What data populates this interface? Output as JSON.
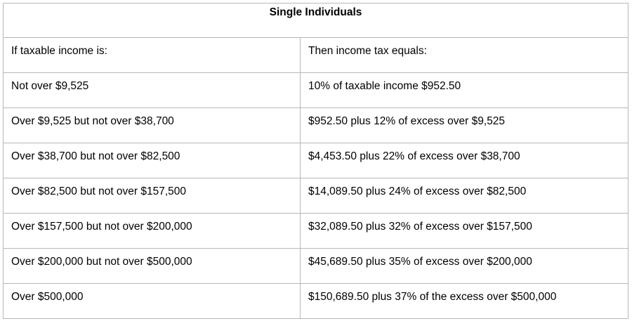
{
  "table": {
    "title": "Single Individuals",
    "headers": [
      "If taxable income is:",
      "Then income tax equals:"
    ],
    "rows": [
      [
        "Not over $9,525",
        "10% of taxable income  $952.50"
      ],
      [
        "Over $9,525 but not over $38,700",
        "$952.50 plus 12% of excess over $9,525"
      ],
      [
        "Over $38,700 but not over $82,500",
        "$4,453.50 plus 22% of excess over $38,700"
      ],
      [
        "Over $82,500 but not over $157,500",
        "$14,089.50 plus 24% of excess over $82,500"
      ],
      [
        "Over $157,500 but not over $200,000",
        "$32,089.50 plus 32% of excess over $157,500"
      ],
      [
        "Over $200,000 but not over $500,000",
        "$45,689.50 plus 35% of excess over $200,000"
      ],
      [
        "Over $500,000",
        "$150,689.50 plus 37% of the excess over $500,000"
      ]
    ]
  }
}
